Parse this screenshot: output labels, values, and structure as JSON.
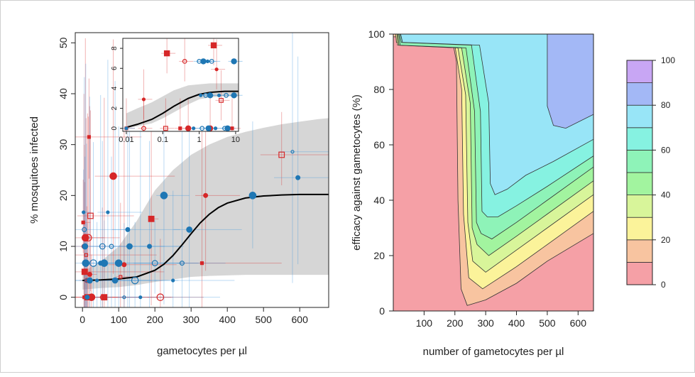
{
  "chart_data": [
    {
      "type": "scatter",
      "xlabel": "gametocytes per µl",
      "ylabel": "% mosquitoes infected",
      "xlim": [
        -20,
        680
      ],
      "ylim": [
        -2,
        52
      ],
      "xticks": [
        0,
        100,
        200,
        300,
        400,
        500,
        600
      ],
      "yticks": [
        0,
        10,
        20,
        30,
        40,
        50
      ],
      "grid": false,
      "series": [
        {
          "color": "#d62728",
          "points": [
            {
              "x": 2,
              "y": 14.7
            },
            {
              "x": 4,
              "y": 10
            },
            {
              "x": 6,
              "y": 5
            },
            {
              "x": 8,
              "y": 11.7
            },
            {
              "x": 10,
              "y": 8.3
            },
            {
              "x": 12,
              "y": 3.3
            },
            {
              "x": 14,
              "y": 0
            },
            {
              "x": 16,
              "y": 11.7
            },
            {
              "x": 18,
              "y": 31.5
            },
            {
              "x": 20,
              "y": 4.5
            },
            {
              "x": 22,
              "y": 16
            },
            {
              "x": 25,
              "y": 0
            },
            {
              "x": 5,
              "y": 0
            },
            {
              "x": 55,
              "y": 0
            },
            {
              "x": 60,
              "y": 0
            },
            {
              "x": 85,
              "y": 23.8
            },
            {
              "x": 105,
              "y": 4
            },
            {
              "x": 115,
              "y": 6.4
            },
            {
              "x": 190,
              "y": 15.4
            },
            {
              "x": 215,
              "y": 0
            },
            {
              "x": 330,
              "y": 6.7
            },
            {
              "x": 340,
              "y": 20
            },
            {
              "x": 550,
              "y": 28
            }
          ]
        },
        {
          "color": "#1f77b4",
          "points": [
            {
              "x": 3,
              "y": 16.7
            },
            {
              "x": 5,
              "y": 13.3
            },
            {
              "x": 7,
              "y": 10
            },
            {
              "x": 9,
              "y": 6.7
            },
            {
              "x": 11,
              "y": 3.3
            },
            {
              "x": 13,
              "y": 0
            },
            {
              "x": 20,
              "y": 3.3
            },
            {
              "x": 30,
              "y": 6.7
            },
            {
              "x": 40,
              "y": 3.3
            },
            {
              "x": 50,
              "y": 6.7
            },
            {
              "x": 55,
              "y": 10
            },
            {
              "x": 60,
              "y": 6.7
            },
            {
              "x": 70,
              "y": 16.7
            },
            {
              "x": 80,
              "y": 10
            },
            {
              "x": 90,
              "y": 3.3
            },
            {
              "x": 100,
              "y": 6.7
            },
            {
              "x": 115,
              "y": 0
            },
            {
              "x": 125,
              "y": 13.3
            },
            {
              "x": 130,
              "y": 10
            },
            {
              "x": 145,
              "y": 3.3
            },
            {
              "x": 160,
              "y": 0
            },
            {
              "x": 185,
              "y": 10
            },
            {
              "x": 200,
              "y": 6.7
            },
            {
              "x": 225,
              "y": 20
            },
            {
              "x": 250,
              "y": 3.3
            },
            {
              "x": 275,
              "y": 6.7
            },
            {
              "x": 295,
              "y": 13.3
            },
            {
              "x": 470,
              "y": 20
            },
            {
              "x": 580,
              "y": 28.6
            },
            {
              "x": 595,
              "y": 23.5
            }
          ]
        }
      ],
      "fit_curve": {
        "x": [
          0,
          50,
          100,
          150,
          200,
          225,
          250,
          275,
          300,
          325,
          350,
          375,
          400,
          450,
          500,
          550,
          600,
          650,
          680
        ],
        "y": [
          3.3,
          3.4,
          3.6,
          4.0,
          5.3,
          6.5,
          8.2,
          10.3,
          12.5,
          14.6,
          16.3,
          17.6,
          18.5,
          19.5,
          19.9,
          20.1,
          20.2,
          20.2,
          20.2
        ]
      },
      "confidence_band": {
        "x": [
          0,
          50,
          100,
          150,
          200,
          250,
          300,
          350,
          400,
          450,
          500,
          550,
          600,
          650,
          680
        ],
        "lower": [
          1.5,
          1.8,
          2.0,
          2.4,
          3.0,
          3.5,
          4.0,
          4.2,
          4.3,
          4.4,
          4.4,
          4.4,
          4.4,
          4.4,
          4.4
        ],
        "upper": [
          5.0,
          7.0,
          10.0,
          15.0,
          21.0,
          25.0,
          28.0,
          30.0,
          31.5,
          32.5,
          33.3,
          34.0,
          34.5,
          35.0,
          35.2
        ]
      },
      "inset": {
        "type": "scatter",
        "xscale": "log",
        "xlim": [
          0.008,
          12
        ],
        "ylim": [
          -0.3,
          9
        ],
        "xticks": [
          0.01,
          0.1,
          1,
          10
        ],
        "xticklabels": [
          "0.01",
          "0.1",
          "1",
          "10"
        ],
        "yticks": [
          0,
          2,
          4,
          6,
          8
        ],
        "fit_curve": {
          "x": [
            0.01,
            0.02,
            0.05,
            0.1,
            0.2,
            0.5,
            1,
            2,
            5,
            10,
            12
          ],
          "y": [
            0.1,
            0.4,
            0.9,
            1.5,
            2.2,
            3.0,
            3.4,
            3.6,
            3.7,
            3.7,
            3.7
          ]
        },
        "confidence_band": {
          "x": [
            0.01,
            0.02,
            0.05,
            0.1,
            0.2,
            0.5,
            1,
            2,
            5,
            10,
            12
          ],
          "lower": [
            0.0,
            0.2,
            0.5,
            1.0,
            1.6,
            2.4,
            2.9,
            3.1,
            3.2,
            3.2,
            3.2
          ],
          "upper": [
            1.5,
            2.0,
            2.6,
            3.2,
            3.8,
            4.3,
            4.4,
            4.5,
            4.5,
            4.5,
            4.5
          ]
        },
        "series": [
          {
            "color": "#d62728",
            "points": [
              {
                "x": 0.01,
                "y": 0
              },
              {
                "x": 0.03,
                "y": 0
              },
              {
                "x": 0.13,
                "y": 7.5
              },
              {
                "x": 0.03,
                "y": 2.9
              },
              {
                "x": 0.12,
                "y": 0
              },
              {
                "x": 0.5,
                "y": 0
              },
              {
                "x": 0.3,
                "y": 0
              },
              {
                "x": 0.4,
                "y": 6.7
              },
              {
                "x": 2.5,
                "y": 8.3
              },
              {
                "x": 3,
                "y": 5.9
              },
              {
                "x": 4,
                "y": 2.8
              },
              {
                "x": 2,
                "y": 0
              },
              {
                "x": 8,
                "y": 0
              }
            ]
          },
          {
            "color": "#1f77b4",
            "points": [
              {
                "x": 0.01,
                "y": 0
              },
              {
                "x": 1,
                "y": 6.7
              },
              {
                "x": 1.3,
                "y": 6.7
              },
              {
                "x": 1.7,
                "y": 6.7
              },
              {
                "x": 2.2,
                "y": 6.7
              },
              {
                "x": 9,
                "y": 6.7
              },
              {
                "x": 1.1,
                "y": 3.3
              },
              {
                "x": 1.5,
                "y": 3.3
              },
              {
                "x": 2,
                "y": 3.3
              },
              {
                "x": 3.5,
                "y": 3.3
              },
              {
                "x": 5.5,
                "y": 3.3
              },
              {
                "x": 9,
                "y": 3.3
              },
              {
                "x": 0.7,
                "y": 0
              },
              {
                "x": 1.2,
                "y": 0
              },
              {
                "x": 1.8,
                "y": 0
              },
              {
                "x": 2.8,
                "y": 0
              },
              {
                "x": 5,
                "y": 0
              },
              {
                "x": 6,
                "y": 0
              }
            ]
          }
        ]
      }
    },
    {
      "type": "heatmap",
      "xlabel": "number of gametocytes per µl",
      "ylabel": "efficacy against gametocytes (%)",
      "xlim": [
        0,
        650
      ],
      "ylim": [
        0,
        100
      ],
      "xticks": [
        100,
        200,
        300,
        400,
        500,
        600
      ],
      "yticks": [
        0,
        20,
        40,
        60,
        80,
        100
      ],
      "colorbar": {
        "levels": [
          0,
          10,
          20,
          30,
          40,
          50,
          60,
          70,
          80,
          90,
          100
        ],
        "tick_labels": [
          "0",
          "20",
          "40",
          "60",
          "80",
          "100"
        ],
        "colors": [
          "#f5a0a6",
          "#f8c4a0",
          "#fbf39a",
          "#d8f59a",
          "#a2f49f",
          "#8ef3b8",
          "#86f2e1",
          "#98e5f7",
          "#a3b8f6",
          "#c8a6f4"
        ]
      }
    }
  ]
}
